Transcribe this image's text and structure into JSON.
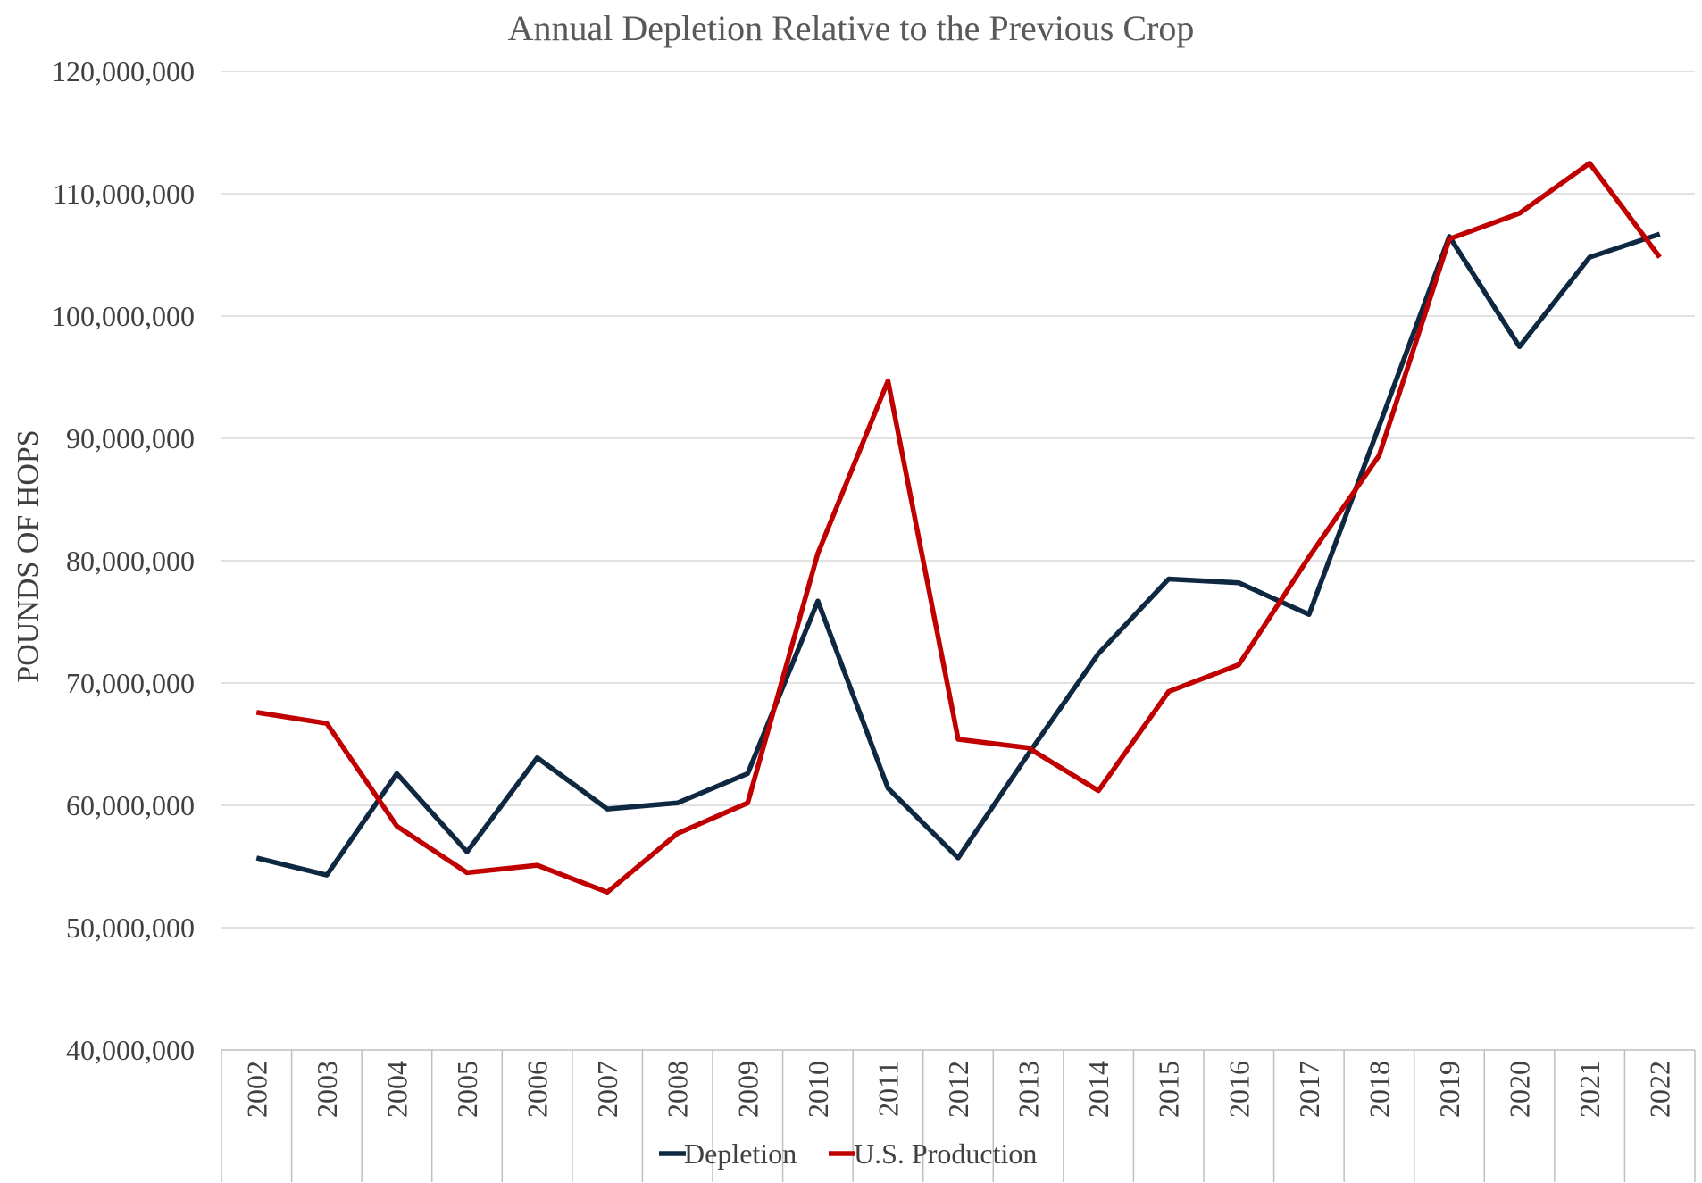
{
  "chart_data": {
    "type": "line",
    "title": "Annual Depletion Relative to the Previous Crop",
    "xlabel": "",
    "ylabel": "POUNDS OF HOPS",
    "x": [
      "2002",
      "2003",
      "2004",
      "2005",
      "2006",
      "2007",
      "2008",
      "2009",
      "2010",
      "2011",
      "2012",
      "2013",
      "2014",
      "2015",
      "2016",
      "2017",
      "2018",
      "2019",
      "2020",
      "2021",
      "2022"
    ],
    "ylim": [
      40000000,
      120000000
    ],
    "y_ticks": [
      {
        "value": 40000000,
        "label": "40,000,000"
      },
      {
        "value": 50000000,
        "label": "50,000,000"
      },
      {
        "value": 60000000,
        "label": "60,000,000"
      },
      {
        "value": 70000000,
        "label": "70,000,000"
      },
      {
        "value": 80000000,
        "label": "80,000,000"
      },
      {
        "value": 90000000,
        "label": "90,000,000"
      },
      {
        "value": 100000000,
        "label": "100,000,000"
      },
      {
        "value": 110000000,
        "label": "110,000,000"
      },
      {
        "value": 120000000,
        "label": "120,000,000"
      }
    ],
    "grid": true,
    "legend_position": "bottom",
    "series": [
      {
        "name": "Depletion",
        "color": "#0e2841",
        "values": [
          55700000,
          54300000,
          62600000,
          56200000,
          63900000,
          59700000,
          60200000,
          62600000,
          76700000,
          61400000,
          55700000,
          64200000,
          72400000,
          78500000,
          78200000,
          75600000,
          91000000,
          106500000,
          97500000,
          104800000,
          106700000
        ]
      },
      {
        "name": "U.S. Production",
        "color": "#c00000",
        "values": [
          67600000,
          66700000,
          58300000,
          54500000,
          55100000,
          52900000,
          57700000,
          60200000,
          80600000,
          94700000,
          65400000,
          64700000,
          61200000,
          69300000,
          71500000,
          80300000,
          88600000,
          106300000,
          108400000,
          112500000,
          104800000
        ]
      }
    ]
  }
}
